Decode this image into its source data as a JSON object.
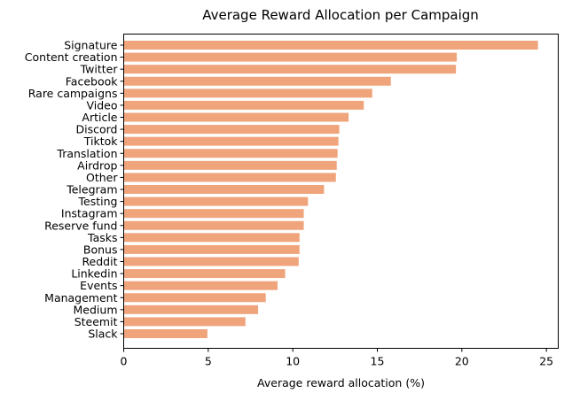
{
  "chart_data": {
    "type": "bar",
    "orientation": "horizontal",
    "title": "Average Reward Allocation per Campaign",
    "xlabel": "Average reward allocation (%)",
    "ylabel": "",
    "xlim": [
      0,
      25.7
    ],
    "xticks": [
      0,
      5,
      10,
      15,
      20,
      25
    ],
    "grid": false,
    "legend": "none",
    "bar_color": "#f0a47c",
    "categories": [
      "Signature",
      "Content creation",
      "Twitter",
      "Facebook",
      "Rare campaigns",
      "Video",
      "Article",
      "Discord",
      "Tiktok",
      "Translation",
      "Airdrop",
      "Other",
      "Telegram",
      "Testing",
      "Instagram",
      "Reserve fund",
      "Tasks",
      "Bonus",
      "Reddit",
      "Linkedin",
      "Events",
      "Management",
      "Medium",
      "Steemit",
      "Slack"
    ],
    "values": [
      24.5,
      19.7,
      19.65,
      15.8,
      14.7,
      14.2,
      13.3,
      12.75,
      12.7,
      12.65,
      12.6,
      12.55,
      11.85,
      10.9,
      10.65,
      10.65,
      10.4,
      10.4,
      10.35,
      9.55,
      9.1,
      8.4,
      7.95,
      7.2,
      4.95
    ]
  }
}
